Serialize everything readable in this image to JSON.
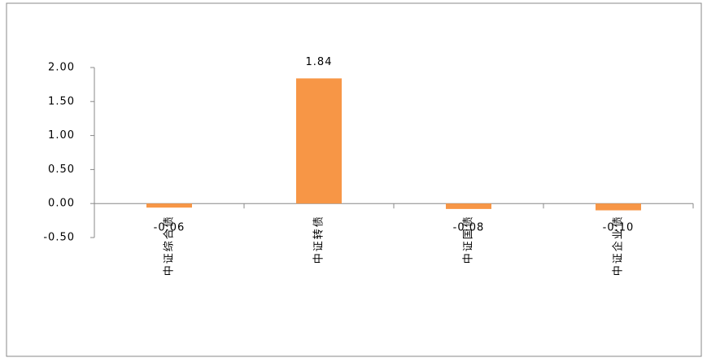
{
  "chart_data": {
    "type": "bar",
    "categories": [
      "中证综合债",
      "中证转债",
      "中证国债",
      "中证企业债"
    ],
    "values": [
      -0.06,
      1.84,
      -0.08,
      -0.1
    ],
    "value_labels": [
      "-0.06",
      "1.84",
      "-0.08",
      "-0.10"
    ],
    "color": "#f79646",
    "ylim": [
      -0.5,
      2.0
    ],
    "yticks": [
      {
        "value": -0.5,
        "label": "-0.50"
      },
      {
        "value": 0,
        "label": "0.00"
      },
      {
        "value": 0.5,
        "label": "0.50"
      },
      {
        "value": 1.0,
        "label": "1.00"
      },
      {
        "value": 1.5,
        "label": "1.50"
      },
      {
        "value": 2.0,
        "label": "2.00"
      }
    ]
  }
}
